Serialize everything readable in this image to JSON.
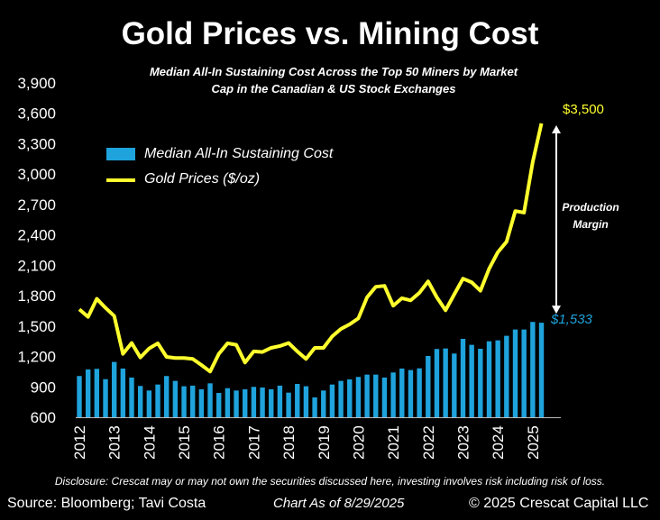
{
  "chart_data": {
    "type": "bar+line",
    "title": "Gold Prices vs. Mining Cost",
    "subtitle": [
      "Median All-In Sustaining Cost Across the Top 50 Miners by Market",
      "Cap in the Canadian & US Stock Exchanges"
    ],
    "ylim": [
      600,
      3900
    ],
    "yticks": [
      "600",
      "900",
      "1,200",
      "1,500",
      "1,800",
      "2,100",
      "2,400",
      "2,700",
      "3,000",
      "3,300",
      "3,600",
      "3,900"
    ],
    "ytick_values": [
      600,
      900,
      1200,
      1500,
      1800,
      2100,
      2400,
      2700,
      3000,
      3300,
      3600,
      3900
    ],
    "x_frequency": "quarterly, 2012 Q1 to 2025 Q2",
    "year_labels": [
      "2012",
      "2013",
      "2014",
      "2015",
      "2016",
      "2017",
      "2018",
      "2019",
      "2020",
      "2021",
      "2022",
      "2023",
      "2024",
      "2025"
    ],
    "legend": "upper-left",
    "series": [
      {
        "name": "Median All-In Sustaining Cost",
        "type": "bar",
        "color": "#1fa3dc",
        "values": [
          1007,
          1072,
          1078,
          976,
          1146,
          1081,
          992,
          909,
          864,
          923,
          1007,
          959,
          906,
          912,
          876,
          935,
          840,
          887,
          864,
          876,
          900,
          894,
          876,
          912,
          843,
          929,
          906,
          796,
          864,
          923,
          959,
          974,
          998,
          1021,
          1021,
          992,
          1042,
          1081,
          1066,
          1083,
          1205,
          1274,
          1279,
          1229,
          1374,
          1315,
          1276,
          1350,
          1359,
          1404,
          1466,
          1466,
          1541,
          1533
        ]
      },
      {
        "name": "Gold Prices ($/oz)",
        "type": "line",
        "color": "#ffff2e",
        "values": [
          1665,
          1591,
          1769,
          1680,
          1600,
          1226,
          1333,
          1190,
          1279,
          1330,
          1196,
          1185,
          1185,
          1176,
          1116,
          1051,
          1226,
          1330,
          1315,
          1140,
          1250,
          1244,
          1285,
          1303,
          1333,
          1250,
          1176,
          1285,
          1285,
          1398,
          1472,
          1517,
          1576,
          1784,
          1888,
          1897,
          1701,
          1775,
          1754,
          1828,
          1941,
          1784,
          1656,
          1813,
          1968,
          1932,
          1849,
          2066,
          2229,
          2333,
          2635,
          2620,
          3119,
          3500
        ]
      }
    ],
    "annotations": {
      "gold_last": "$3,500",
      "cost_last": "$1,533",
      "margin": [
        "Production",
        "Margin"
      ]
    }
  },
  "footer": {
    "disclosure": "Disclosure: Crescat may or may not own the securities discussed here, investing involves risk including risk of loss.",
    "source": "Source: Bloomberg; Tavi Costa",
    "asof": "Chart As of 8/29/2025",
    "copyright": "© 2025 Crescat Capital LLC"
  }
}
